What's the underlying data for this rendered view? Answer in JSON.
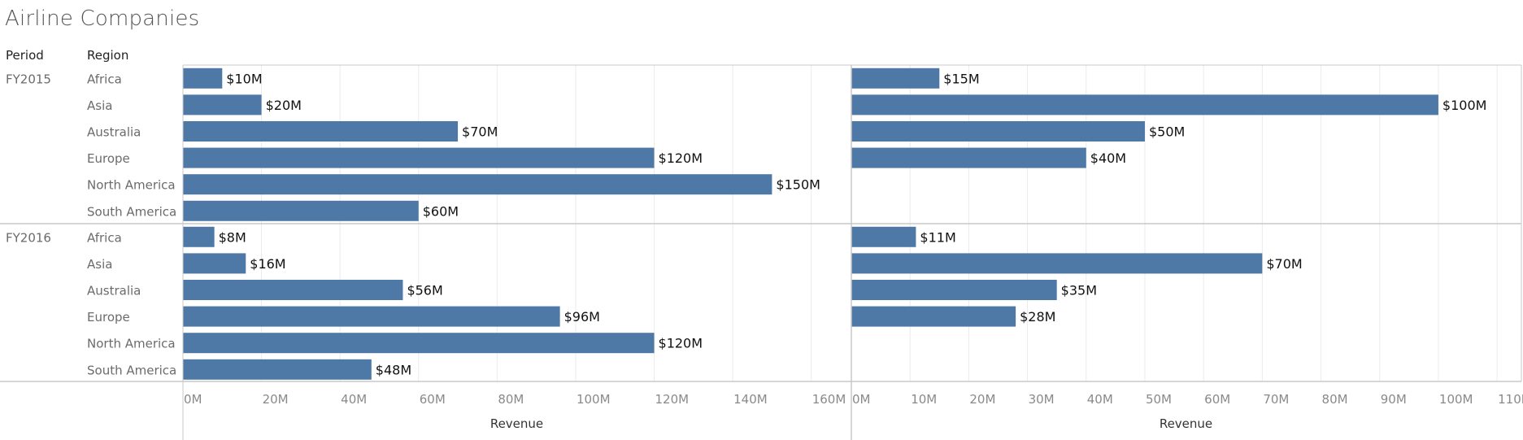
{
  "title": "Airline Companies",
  "headers": {
    "period": "Period",
    "region": "Region"
  },
  "colors": {
    "bar": "#4e79a7",
    "grid": "#ebebeb",
    "divider": "#c8c8c8"
  },
  "chart_data": {
    "type": "bar",
    "orientation": "horizontal",
    "title": "Airline Companies",
    "periods": [
      "FY2015",
      "FY2016"
    ],
    "categories": [
      "Africa",
      "Asia",
      "Australia",
      "Europe",
      "North America",
      "South America"
    ],
    "panels": [
      {
        "xlabel": "Revenue",
        "xlim": [
          0,
          170
        ],
        "ticks": [
          0,
          20,
          40,
          60,
          80,
          100,
          120,
          140,
          160
        ],
        "tick_labels": [
          "0M",
          "20M",
          "40M",
          "60M",
          "80M",
          "100M",
          "120M",
          "140M",
          "160M"
        ],
        "series": [
          {
            "period": "FY2015",
            "values": [
              10,
              20,
              70,
              120,
              150,
              60
            ],
            "labels": [
              "$10M",
              "$20M",
              "$70M",
              "$120M",
              "$150M",
              "$60M"
            ]
          },
          {
            "period": "FY2016",
            "values": [
              8,
              16,
              56,
              96,
              120,
              48
            ],
            "labels": [
              "$8M",
              "$16M",
              "$56M",
              "$96M",
              "$120M",
              "$48M"
            ]
          }
        ]
      },
      {
        "xlabel": "Revenue",
        "xlim": [
          0,
          114
        ],
        "ticks": [
          0,
          10,
          20,
          30,
          40,
          50,
          60,
          70,
          80,
          90,
          100,
          110
        ],
        "tick_labels": [
          "0M",
          "10M",
          "20M",
          "30M",
          "40M",
          "50M",
          "60M",
          "70M",
          "80M",
          "90M",
          "100M",
          "110M"
        ],
        "series": [
          {
            "period": "FY2015",
            "values": [
              15,
              100,
              50,
              40,
              null,
              null
            ],
            "labels": [
              "$15M",
              "$100M",
              "$50M",
              "$40M",
              "",
              ""
            ]
          },
          {
            "period": "FY2016",
            "values": [
              11,
              70,
              35,
              28,
              null,
              null
            ],
            "labels": [
              "$11M",
              "$70M",
              "$35M",
              "$28M",
              "",
              ""
            ]
          }
        ]
      }
    ],
    "grid": true,
    "legend": "none"
  }
}
